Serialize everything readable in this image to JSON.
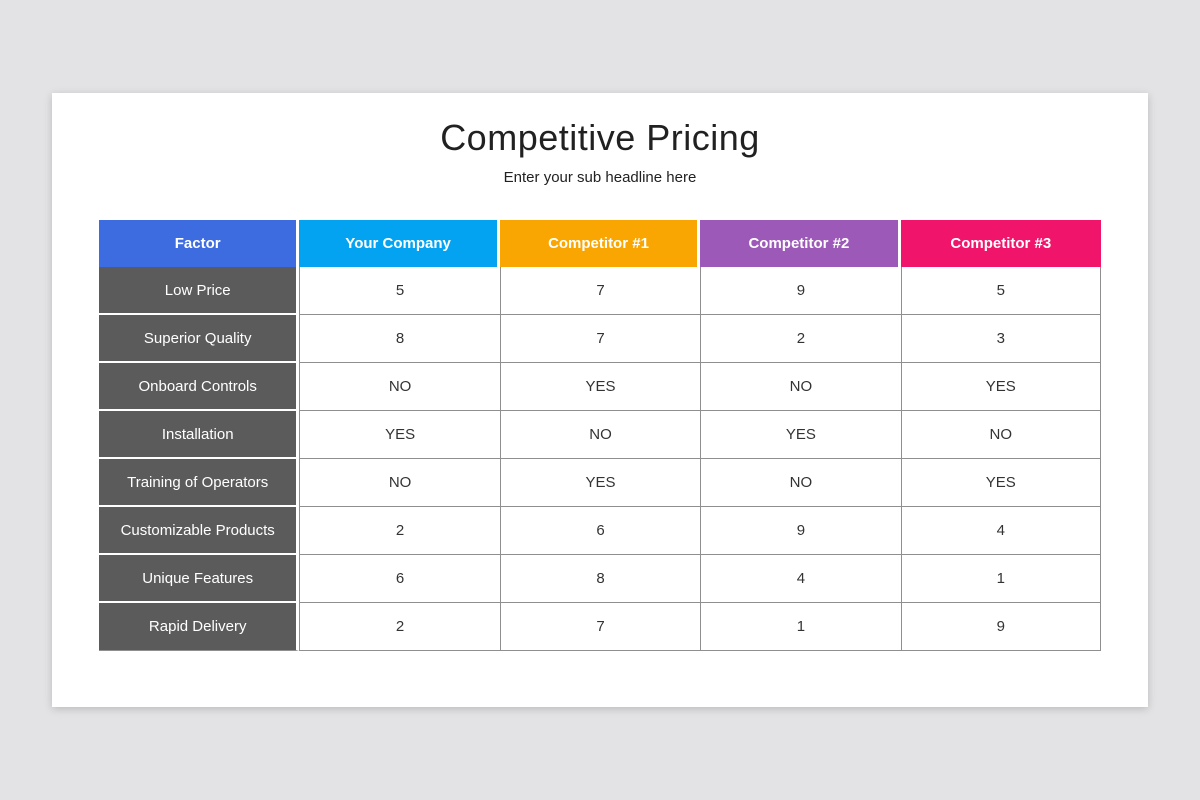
{
  "slide": {
    "title": "Competitive Pricing",
    "subtitle": "Enter your sub headline here"
  },
  "table": {
    "columns": [
      {
        "label": "Factor",
        "color": "#3D6BE0"
      },
      {
        "label": "Your Company",
        "color": "#03A3F1"
      },
      {
        "label": "Competitor #1",
        "color": "#F9A602"
      },
      {
        "label": "Competitor #2",
        "color": "#9C59B8"
      },
      {
        "label": "Competitor #3",
        "color": "#F0146B"
      }
    ],
    "rows": [
      {
        "factor": "Low Price",
        "values": [
          "5",
          "7",
          "9",
          "5"
        ]
      },
      {
        "factor": "Superior Quality",
        "values": [
          "8",
          "7",
          "2",
          "3"
        ]
      },
      {
        "factor": "Onboard Controls",
        "values": [
          "NO",
          "YES",
          "NO",
          "YES"
        ]
      },
      {
        "factor": "Installation",
        "values": [
          "YES",
          "NO",
          "YES",
          "NO"
        ]
      },
      {
        "factor": "Training of Operators",
        "values": [
          "NO",
          "YES",
          "NO",
          "YES"
        ]
      },
      {
        "factor": "Customizable Products",
        "values": [
          "2",
          "6",
          "9",
          "4"
        ]
      },
      {
        "factor": "Unique Features",
        "values": [
          "6",
          "8",
          "4",
          "1"
        ]
      },
      {
        "factor": "Rapid Delivery",
        "values": [
          "2",
          "7",
          "1",
          "9"
        ]
      }
    ]
  },
  "colors": {
    "page_background": "#E3E3E5",
    "card_background": "#FFFFFF",
    "row_label_background": "#5B5B5B",
    "grid_border": "#8F8F8F",
    "data_text": "#333333",
    "title_text": "#212121"
  }
}
